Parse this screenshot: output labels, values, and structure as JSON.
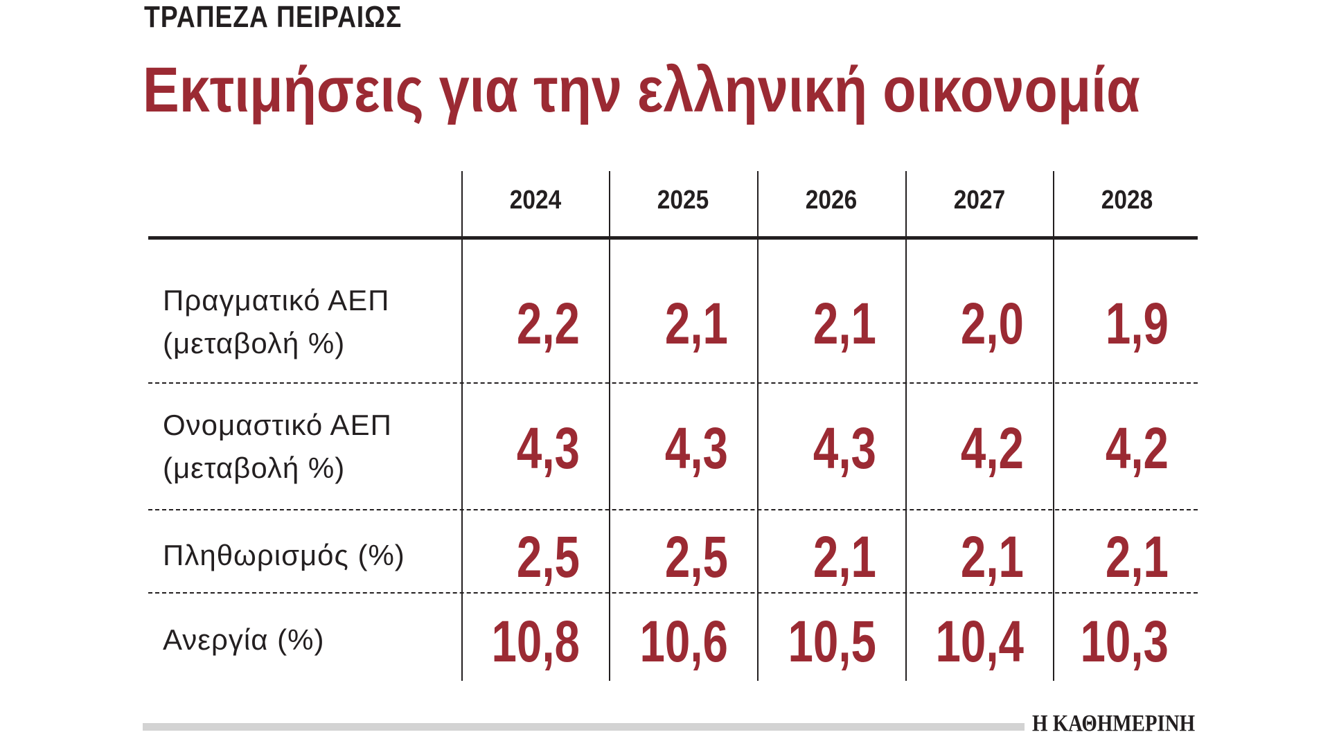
{
  "header": {
    "kicker": "ΤΡΑΠΕΖΑ ΠΕΙΡΑΙΩΣ",
    "title": "Εκτιμήσεις για την ελληνική οικονομία"
  },
  "table": {
    "columns": [
      "2024",
      "2025",
      "2026",
      "2027",
      "2028"
    ],
    "rows": [
      {
        "label": [
          "Πραγματικό ΑΕΠ",
          "(μεταβολή %)"
        ],
        "values": [
          "2,2",
          "2,1",
          "2,1",
          "2,0",
          "1,9"
        ]
      },
      {
        "label": [
          "Ονομαστικό ΑΕΠ",
          "(μεταβολή %)"
        ],
        "values": [
          "4,3",
          "4,3",
          "4,3",
          "4,2",
          "4,2"
        ]
      },
      {
        "label": [
          "Πληθωρισμός (%)"
        ],
        "values": [
          "2,5",
          "2,5",
          "2,1",
          "2,1",
          "2,1"
        ]
      },
      {
        "label": [
          "Ανεργία (%)"
        ],
        "values": [
          "10,8",
          "10,6",
          "10,5",
          "10,4",
          "10,3"
        ]
      }
    ]
  },
  "footer": {
    "brand": "Η ΚΑΘΗΜΕΡΙΝΗ"
  }
}
